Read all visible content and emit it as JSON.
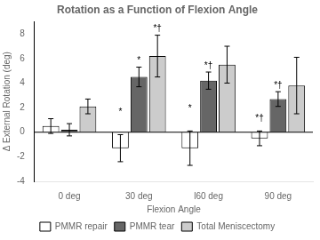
{
  "chart_data": {
    "type": "bar",
    "title": "Rotation as a Function of Flexion Angle",
    "xlabel": "Flexion Angle",
    "ylabel": "Δ External Rotation (deg)",
    "categories": [
      "0 deg",
      "30 deg",
      "l60 deg",
      "90 deg"
    ],
    "series": [
      {
        "name": "PMMR repair",
        "color": "#ffffff",
        "values": [
          0.5,
          -1.3,
          -1.3,
          -0.5
        ],
        "errors": [
          0.6,
          1.1,
          1.4,
          0.6
        ],
        "annotations": [
          null,
          "*",
          "*",
          "*†"
        ]
      },
      {
        "name": "PMMR tear",
        "color": "#666666",
        "values": [
          0.2,
          4.5,
          4.2,
          2.7
        ],
        "errors": [
          0.5,
          0.8,
          0.7,
          0.6
        ],
        "annotations": [
          null,
          "*",
          "*†",
          "*†"
        ]
      },
      {
        "name": "Total Meniscectomy",
        "color": "#cccccc",
        "values": [
          2.1,
          6.2,
          5.5,
          3.8
        ],
        "errors": [
          0.6,
          1.7,
          1.5,
          2.3
        ],
        "annotations": [
          null,
          "*†",
          null,
          null
        ]
      }
    ],
    "ylim": [
      -4,
      9
    ],
    "yticks": [
      -4,
      -2,
      0,
      2,
      4,
      6,
      8
    ],
    "grid": false,
    "legend": "bottom"
  }
}
